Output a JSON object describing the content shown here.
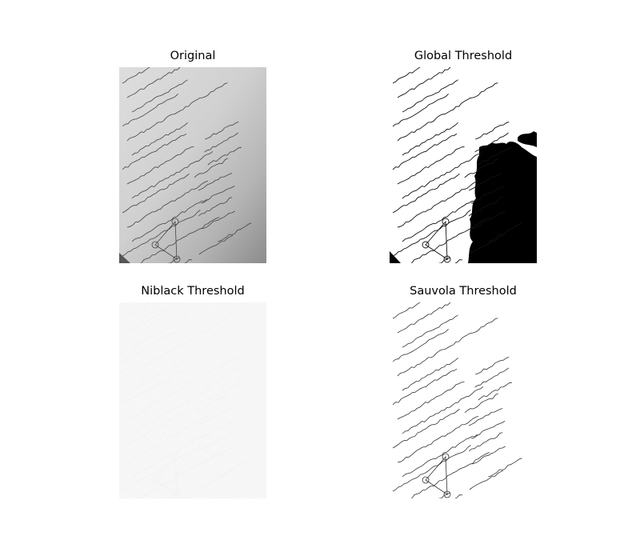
{
  "panels": [
    {
      "title": "Original",
      "kind": "original-photo"
    },
    {
      "title": "Global Threshold",
      "kind": "global-threshold"
    },
    {
      "title": "Niblack Threshold",
      "kind": "niblack-threshold"
    },
    {
      "title": "Sauvola Threshold",
      "kind": "sauvola-threshold"
    }
  ],
  "colors": {
    "background": "#ffffff",
    "paper_light": "#e2e2e2",
    "paper_dark": "#8a8a8a",
    "ink": "#222222",
    "niblack_bg": "#cfcfcf"
  }
}
